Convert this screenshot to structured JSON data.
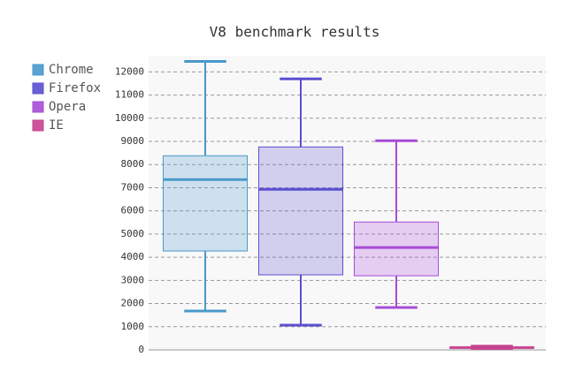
{
  "chart_data": {
    "type": "box",
    "title": "V8 benchmark results",
    "series": [
      {
        "name": "Chrome",
        "color": "#4a98cb",
        "values": [
          1680,
          4270,
          7350,
          8380,
          12450
        ]
      },
      {
        "name": "Firefox",
        "color": "#5a4fcf",
        "values": [
          1070,
          3240,
          6930,
          8760,
          11700
        ]
      },
      {
        "name": "Opera",
        "color": "#a64cd6",
        "values": [
          1830,
          3200,
          4420,
          5520,
          9030
        ]
      },
      {
        "name": "IE",
        "color": "#c8438f",
        "values": [
          60,
          80,
          100,
          120,
          160
        ]
      }
    ],
    "ylim": [
      0,
      12700
    ],
    "yticks": [
      0,
      1000,
      2000,
      3000,
      4000,
      5000,
      6000,
      7000,
      8000,
      9000,
      10000,
      11000,
      12000
    ],
    "grid": true
  }
}
